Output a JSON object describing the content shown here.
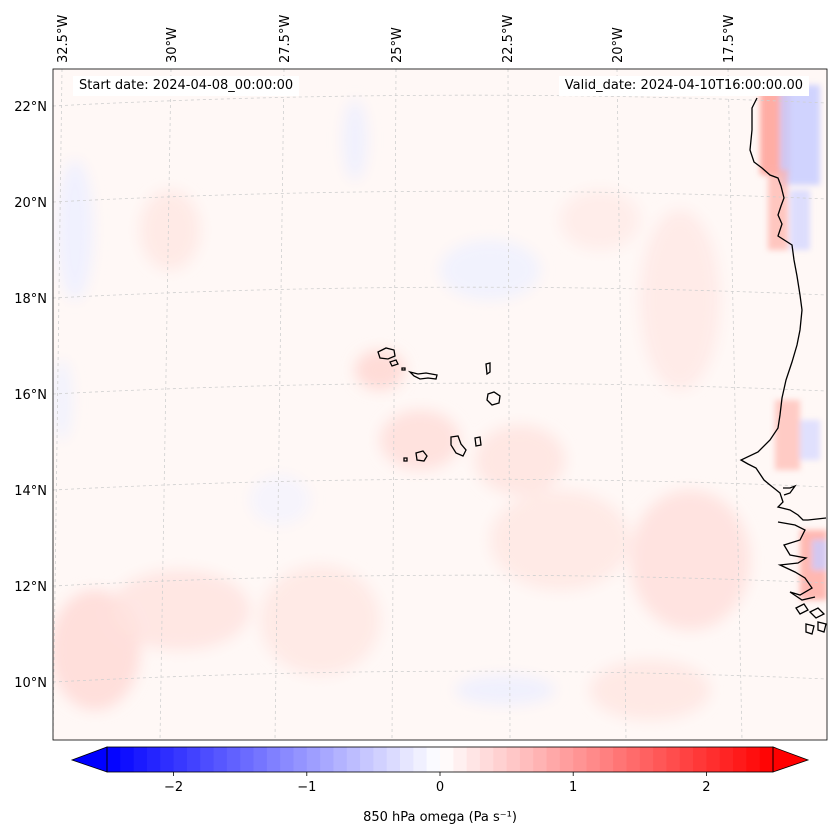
{
  "annotations": {
    "start_date": "Start date: 2024-04-08_00:00:00",
    "valid_date": "Valid_date: 2024-04-10T16:00:00.00"
  },
  "map": {
    "projection": "lambert-conformal",
    "lon_labels": [
      "32.5°W",
      "30°W",
      "27.5°W",
      "25°W",
      "22.5°W",
      "20°W",
      "17.5°W"
    ],
    "lat_labels": [
      "22°N",
      "20°N",
      "18°N",
      "16°N",
      "14°N",
      "12°N",
      "10°N"
    ],
    "lon_values": [
      -32.5,
      -30,
      -27.5,
      -25,
      -22.5,
      -20,
      -17.5
    ],
    "lat_values": [
      22,
      20,
      18,
      16,
      14,
      12,
      10
    ],
    "features": [
      "Cabo Verde islands",
      "West African coastline (Mauritania, Senegal, Gambia, Guinea-Bissau)"
    ]
  },
  "colorbar": {
    "label": "850 hPa omega (Pa s⁻¹)",
    "ticks": [
      "−2",
      "−1",
      "0",
      "1",
      "2"
    ],
    "tick_values": [
      -2,
      -1,
      0,
      1,
      2
    ],
    "range": [
      -2.5,
      2.5
    ],
    "colormap": "bwr",
    "extend": "both",
    "colors": {
      "min": "#0000ff",
      "mid": "#ffffff",
      "max": "#ff0000"
    }
  }
}
